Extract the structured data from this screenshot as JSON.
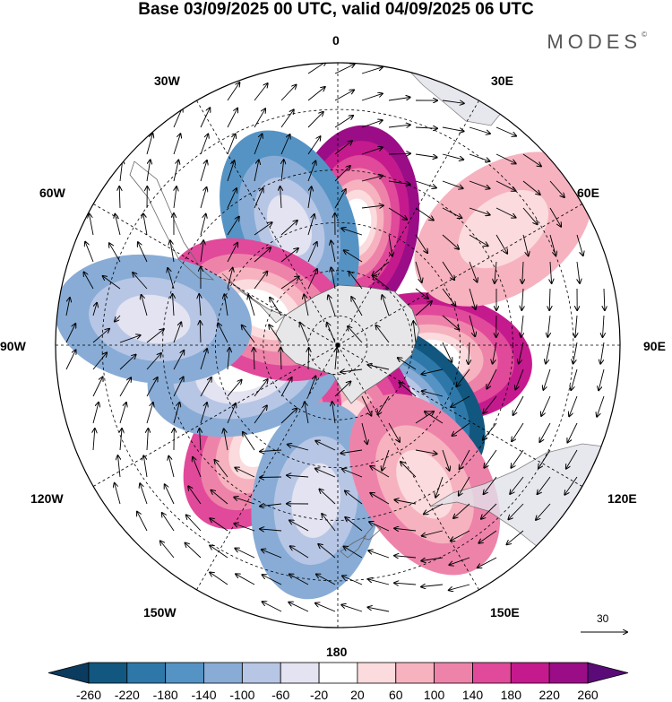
{
  "header": {
    "title": "Base 03/09/2025 00 UTC, valid 04/09/2025 06 UTC",
    "brand": "MODES",
    "brand_mark": "©"
  },
  "map": {
    "projection": "south-polar-stereographic",
    "longitude_labels": {
      "top": "0",
      "top_right": "30E",
      "upper_right": "60E",
      "right": "90E",
      "lower_right": "120E",
      "bottom_right": "150E",
      "bottom": "180",
      "bottom_left": "150W",
      "lower_left": "120W",
      "left": "90W",
      "upper_left": "60W",
      "top_left": "30W"
    },
    "anomaly_centers": [
      {
        "name": "pos-0E",
        "lon": 8,
        "lat": -50,
        "value": 250
      },
      {
        "name": "neg-20W",
        "lon": -22,
        "lat": -48,
        "value": -150
      },
      {
        "name": "pos-95E",
        "lon": 97,
        "lat": -58,
        "value": 200
      },
      {
        "name": "neg-125E",
        "lon": 132,
        "lat": -62,
        "value": -230
      },
      {
        "name": "pos-165E",
        "lon": 168,
        "lat": -62,
        "value": 190
      },
      {
        "name": "pos-140W",
        "lon": -142,
        "lat": -50,
        "value": 170
      },
      {
        "name": "neg-105W",
        "lon": -105,
        "lat": -58,
        "value": -130
      },
      {
        "name": "pos-70W",
        "lon": -65,
        "lat": -62,
        "value": 160
      },
      {
        "name": "neg-80W",
        "lon": -82,
        "lat": -32,
        "value": -110
      },
      {
        "name": "neg-170W",
        "lon": -172,
        "lat": -40,
        "value": -110
      },
      {
        "name": "pos-145E",
        "lon": 148,
        "lat": -38,
        "value": 110
      },
      {
        "name": "pos-55E",
        "lon": 55,
        "lat": -28,
        "value": 70
      }
    ],
    "wind_reference": {
      "label": "30",
      "value": 30
    }
  },
  "colorbar": {
    "ticks": [
      "-260",
      "-220",
      "-180",
      "-140",
      "-100",
      "-60",
      "-20",
      "20",
      "60",
      "100",
      "140",
      "180",
      "220",
      "260"
    ],
    "colors": [
      "#0b3b5e",
      "#11577f",
      "#2d78a8",
      "#5593c4",
      "#88acd6",
      "#b7c6e5",
      "#e3e3f1",
      "#ffffff",
      "#fbdbdd",
      "#f6b2bf",
      "#ee83aa",
      "#e1499a",
      "#c51a8d",
      "#9a0d86",
      "#5b0b78"
    ]
  }
}
